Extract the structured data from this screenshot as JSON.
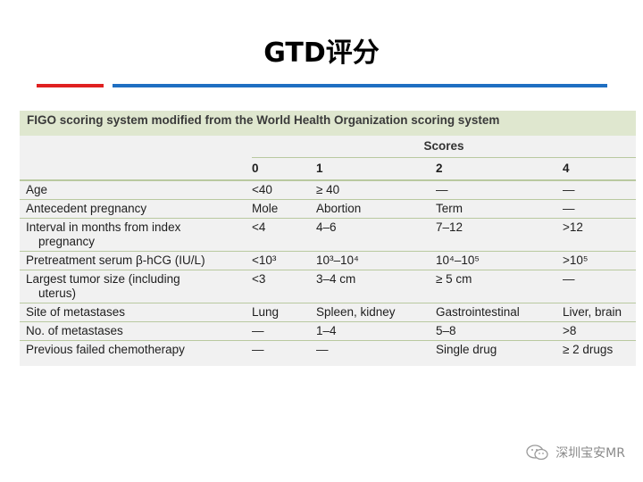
{
  "slide": {
    "title": "GTD评分"
  },
  "table": {
    "caption": "FIGO scoring system modified from the World Health Organization scoring system",
    "scores_header": "Scores",
    "score_columns": [
      "0",
      "1",
      "2",
      "4"
    ],
    "rows": [
      {
        "label": "Age",
        "label2": "",
        "cells": [
          "<40",
          "≥ 40",
          "—",
          "—"
        ]
      },
      {
        "label": "Antecedent pregnancy",
        "label2": "",
        "cells": [
          "Mole",
          "Abortion",
          "Term",
          "—"
        ]
      },
      {
        "label": "Interval in months from index",
        "label2": "pregnancy",
        "cells": [
          "<4",
          "4–6",
          "7–12",
          ">12"
        ]
      },
      {
        "label": "Pretreatment serum β-hCG (IU/L)",
        "label2": "",
        "cells": [
          "<10³",
          "10³–10⁴",
          "10⁴–10⁵",
          ">10⁵"
        ]
      },
      {
        "label": "Largest tumor size (including",
        "label2": "uterus)",
        "cells": [
          "<3",
          "3–4 cm",
          "≥ 5 cm",
          "—"
        ]
      },
      {
        "label": "Site of metastases",
        "label2": "",
        "cells": [
          "Lung",
          "Spleen, kidney",
          "Gastrointestinal",
          "Liver, brain"
        ]
      },
      {
        "label": "No. of metastases",
        "label2": "",
        "cells": [
          "—",
          "1–4",
          "5–8",
          ">8"
        ]
      },
      {
        "label": "Previous failed chemotherapy",
        "label2": "",
        "cells": [
          "—",
          "—",
          "Single drug",
          "≥ 2 drugs"
        ]
      }
    ]
  },
  "watermark": {
    "text": "深圳宝安MR",
    "icon": "wechat-icon"
  },
  "colors": {
    "accent_red": "#e02020",
    "accent_blue": "#1f6fc2",
    "caption_bg": "#dfe7cf",
    "rule": "#b9c9a0"
  }
}
